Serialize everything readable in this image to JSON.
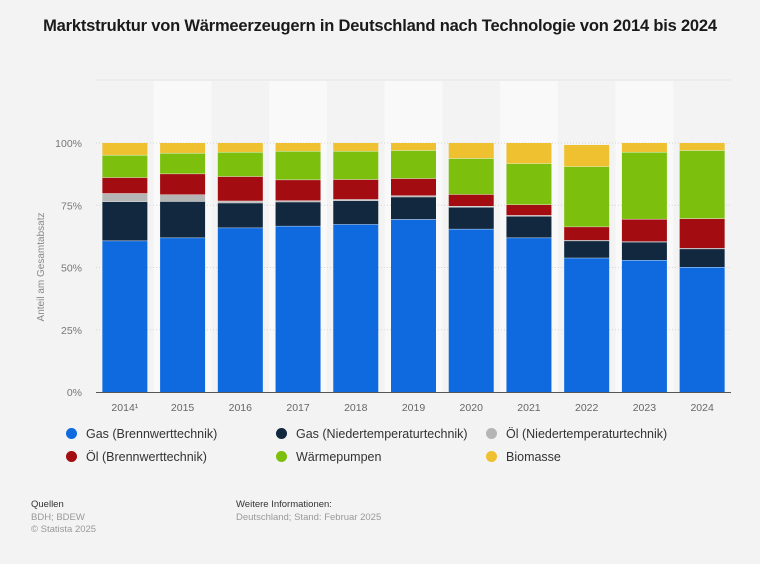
{
  "title": "Marktstruktur von Wärmeerzeugern in Deutschland nach Technologie von 2014 bis 2024",
  "chart_data": {
    "type": "bar",
    "stacked": true,
    "title": "Marktstruktur von Wärmeerzeugern in Deutschland nach Technologie von 2014 bis 2024",
    "xlabel": "",
    "ylabel": "Anteil am Gesamtabsatz",
    "ylim": [
      0,
      100
    ],
    "yticks": [
      "0%",
      "25%",
      "50%",
      "75%",
      "100%"
    ],
    "ytick_values": [
      0,
      25,
      50,
      75,
      100
    ],
    "grid": true,
    "legend_position": "bottom",
    "categories": [
      "2014¹",
      "2015",
      "2016",
      "2017",
      "2018",
      "2019",
      "2020",
      "2021",
      "2022",
      "2023",
      "2024"
    ],
    "series": [
      {
        "name": "Gas (Brennwerttechnik)",
        "color": "#0f6ae0",
        "values": [
          60.8,
          62.0,
          66.0,
          66.7,
          67.4,
          69.4,
          65.5,
          62.0,
          53.9,
          53.0,
          50.2
        ]
      },
      {
        "name": "Gas (Niedertemperaturtechnik)",
        "color": "#12283f",
        "values": [
          15.7,
          14.6,
          10.0,
          9.7,
          9.5,
          9.0,
          8.8,
          8.7,
          6.9,
          7.3,
          7.4
        ]
      },
      {
        "name": "Öl (Niedertemperaturtechnik)",
        "color": "#b5b5b5",
        "values": [
          3.3,
          2.7,
          0.8,
          0.5,
          0.5,
          0.5,
          0.4,
          0.3,
          0.2,
          0.2,
          0.2
        ]
      },
      {
        "name": "Öl (Brennwerttechnik)",
        "color": "#a30d12",
        "values": [
          6.4,
          8.4,
          9.8,
          8.4,
          8.0,
          6.9,
          4.7,
          4.3,
          5.4,
          9.0,
          11.9
        ]
      },
      {
        "name": "Wärmepumpen",
        "color": "#7dbf0d",
        "values": [
          9.0,
          8.3,
          9.8,
          11.5,
          11.4,
          11.3,
          14.5,
          16.5,
          24.2,
          26.9,
          27.4
        ]
      },
      {
        "name": "Biomasse",
        "color": "#efc030",
        "values": [
          4.8,
          4.0,
          3.6,
          3.2,
          3.2,
          2.9,
          6.1,
          8.2,
          8.6,
          3.6,
          2.9
        ]
      }
    ]
  },
  "legend": [
    {
      "label": "Gas (Brennwerttechnik)",
      "color": "#0f6ae0"
    },
    {
      "label": "Gas (Niedertemperaturtechnik)",
      "color": "#12283f"
    },
    {
      "label": "Öl (Niedertemperaturtechnik)",
      "color": "#b5b5b5"
    },
    {
      "label": "Öl (Brennwerttechnik)",
      "color": "#a30d12"
    },
    {
      "label": "Wärmepumpen",
      "color": "#7dbf0d"
    },
    {
      "label": "Biomasse",
      "color": "#efc030"
    }
  ],
  "footer": {
    "sources_heading": "Quellen",
    "sources": "BDH; BDEW",
    "copyright": "© Statista 2025",
    "info_heading": "Weitere Informationen:",
    "info": "Deutschland; Stand: Februar 2025"
  }
}
